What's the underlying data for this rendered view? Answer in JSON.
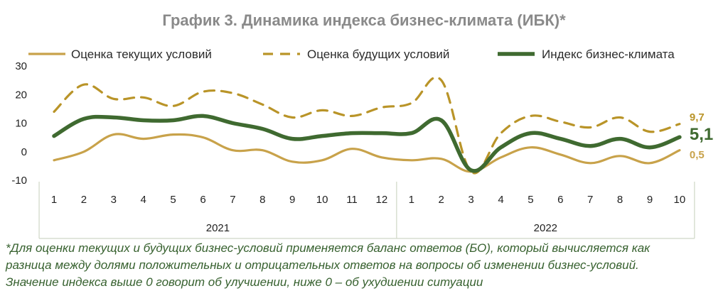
{
  "title": "График 3. Динамика индекса бизнес-климата (ИБК)*",
  "footnote": [
    "*Для оценки текущих и будущих бизнес-условий применяется баланс ответов (БО), который вычисляется как",
    "разница между долями положительных и отрицательных ответов на вопросы об изменении бизнес-условий.",
    "Значение индекса выше 0 говорит об улучшении, ниже 0 – об ухудшении ситуации"
  ],
  "colors": {
    "current": "#c8a24a",
    "future": "#b99428",
    "index": "#3f6a30",
    "axis": "#cfd7c6"
  },
  "chart_data": {
    "type": "line",
    "title": "График 3. Динамика индекса бизнес-климата (ИБК)*",
    "categories": [
      "1",
      "2",
      "3",
      "4",
      "5",
      "6",
      "7",
      "8",
      "9",
      "10",
      "11",
      "12",
      "1",
      "2",
      "3",
      "4",
      "5",
      "6",
      "7",
      "8",
      "9",
      "10"
    ],
    "year_groups": [
      {
        "label": "2021",
        "count": 12
      },
      {
        "label": "2022",
        "count": 10
      }
    ],
    "ylim": [
      -10,
      30
    ],
    "yticks": [
      "30",
      "20",
      "10",
      "0",
      "-10"
    ],
    "legend_position": "top",
    "series": [
      {
        "name": "Оценка текущих условий",
        "style": "solid",
        "values": [
          -3,
          0,
          6,
          4.5,
          6,
          5,
          0.5,
          0.5,
          -3.5,
          -3,
          1,
          -2,
          -3,
          -2.5,
          -7,
          -2,
          1.5,
          -1,
          -4,
          -1.5,
          -4,
          0.5
        ]
      },
      {
        "name": "Оценка будущих условий",
        "style": "dashed",
        "values": [
          14,
          23.5,
          18.5,
          19,
          16,
          21,
          20.5,
          16.5,
          12,
          14.5,
          12.5,
          15.5,
          17,
          25,
          -7,
          6.5,
          12.5,
          10.5,
          8.5,
          12,
          7,
          9.7
        ]
      },
      {
        "name": "Индекс бизнес-климата",
        "style": "bold",
        "values": [
          5.5,
          11.5,
          12,
          11,
          11,
          12.5,
          10,
          8,
          4.5,
          5.5,
          6.5,
          6.5,
          6.5,
          11,
          -6.5,
          1.5,
          6.5,
          4.5,
          2,
          4.5,
          1.5,
          5.1
        ]
      }
    ],
    "end_labels": {
      "current": "0,5",
      "future": "9,7",
      "index": "5,1"
    }
  }
}
